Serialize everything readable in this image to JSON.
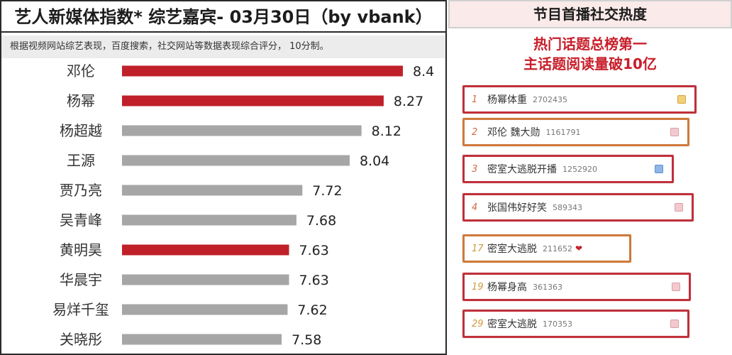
{
  "left": {
    "title": "艺人新媒体指数* 综艺嘉宾- 03月30日（by  vbank）",
    "subtitle": "根据视频网站综艺表现，百度搜索，社交网站等数据表现综合评分， 10分制。"
  },
  "chart_data": {
    "type": "bar",
    "orientation": "horizontal",
    "categories": [
      "邓伦",
      "杨幂",
      "杨超越",
      "王源",
      "贾乃亮",
      "吴青峰",
      "黄明昊",
      "华晨宇",
      "易烊千玺",
      "关晓彤"
    ],
    "values": [
      8.4,
      8.27,
      8.12,
      8.04,
      7.72,
      7.68,
      7.63,
      7.63,
      7.62,
      7.58
    ],
    "value_labels": [
      "8.4",
      "8.27",
      "8.12",
      "8.04",
      "7.72",
      "7.68",
      "7.63",
      "7.63",
      "7.62",
      "7.58"
    ],
    "highlighted": [
      true,
      true,
      false,
      false,
      false,
      false,
      true,
      false,
      false,
      false
    ],
    "colors": {
      "highlight": "#c0202a",
      "normal": "#a6a6a6"
    },
    "xlim": [
      6.5,
      8.4
    ],
    "grid": false,
    "legend": "none"
  },
  "right": {
    "title": "节目首播社交热度",
    "subtitle_line1": "热门话题总榜第一",
    "subtitle_line2": "主话题阅读量破10亿",
    "topics": [
      {
        "rank": "1",
        "title": "杨幂体重",
        "count": "2702435",
        "badge": "gold-square-icon"
      },
      {
        "rank": "2",
        "title": "邓伦 魏大勋",
        "count": "1161791",
        "badge": "pink-square-icon"
      },
      {
        "rank": "3",
        "title": "密室大逃脱开播",
        "count": "1252920",
        "badge": "blue-square-icon"
      },
      {
        "rank": "4",
        "title": "张国伟好好笑",
        "count": "589343",
        "badge": "pink-square-icon"
      },
      {
        "rank": "17",
        "title": "密室大逃脱",
        "count": "211652",
        "badge": "heart-icon"
      },
      {
        "rank": "19",
        "title": "杨幂身高",
        "count": "361363",
        "badge": "pink-square-icon"
      },
      {
        "rank": "29",
        "title": "密室大逃脱",
        "count": "170353",
        "badge": "pink-square-icon"
      }
    ]
  }
}
